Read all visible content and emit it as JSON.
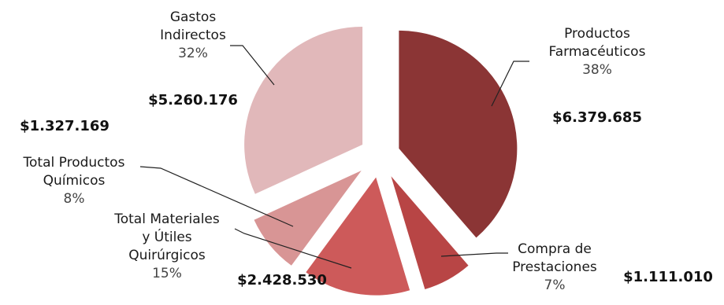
{
  "chart_data": {
    "type": "pie",
    "categories": [
      "Productos Farmacéuticos",
      "Compra de Prestaciones",
      "Total Materiales y Útiles Quirúrgicos",
      "Total Productos Químicos",
      "Gastos Indirectos"
    ],
    "values": [
      6379685,
      1111010,
      2428530,
      1327169,
      5260176
    ],
    "percent_labels": [
      "38%",
      "7%",
      "15%",
      "8%",
      "32%"
    ],
    "value_labels": [
      "$6.379.685",
      "$1.111.010",
      "$2.428.530",
      "$1.327.169",
      "$5.260.176"
    ],
    "label_lines": [
      [
        "Productos",
        "Farmacéuticos"
      ],
      [
        "Compra de",
        "Prestaciones"
      ],
      [
        "Total Materiales",
        "y Útiles",
        "Quirúrgicos"
      ],
      [
        "Total Productos",
        "Químicos"
      ],
      [
        "Gastos",
        "Indirectos"
      ]
    ],
    "colors": [
      "#8b3535",
      "#b84545",
      "#cd5a5a",
      "#d89595",
      "#e1b8ba"
    ],
    "legend": "none",
    "exploded": true
  }
}
